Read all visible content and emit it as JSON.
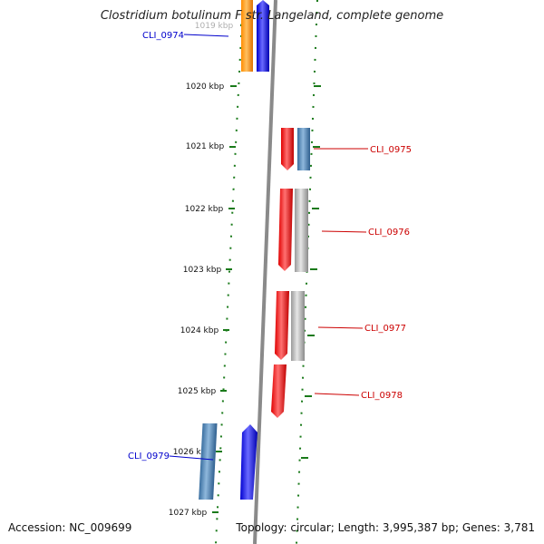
{
  "title": "Clostridium botulinum F str. Langeland, complete genome",
  "footer": {
    "accession": "Accession: NC_009699",
    "topology": "Topology: circular; Length: 3,995,387 bp; Genes: 3,781"
  },
  "colors": {
    "backbone": "#8a8a8a",
    "ticks": "#1a7a1a",
    "forward_label": "#0000cc",
    "reverse_label": "#cc0000"
  },
  "scale": {
    "labels": [
      "1019 kbp",
      "1020 kbp",
      "1021 kbp",
      "1022 kbp",
      "1023 kbp",
      "1024 kbp",
      "1025 kbp",
      "1026 kbp",
      "1027 kbp"
    ]
  },
  "genes": [
    {
      "label": "CLI_0974",
      "strand": "forward"
    },
    {
      "label": "CLI_0975",
      "strand": "reverse"
    },
    {
      "label": "CLI_0976",
      "strand": "reverse"
    },
    {
      "label": "CLI_0977",
      "strand": "reverse"
    },
    {
      "label": "CLI_0978",
      "strand": "reverse"
    },
    {
      "label": "CLI_0979",
      "strand": "forward"
    }
  ]
}
